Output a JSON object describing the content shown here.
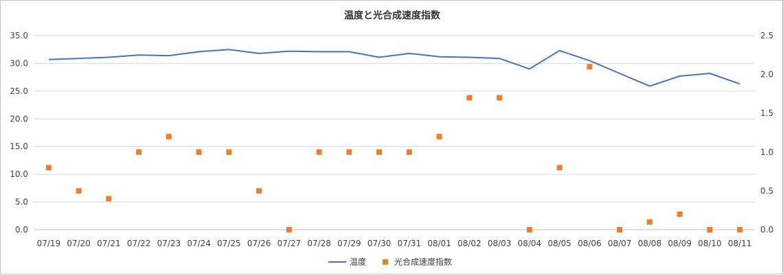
{
  "chart_data": {
    "type": "line+scatter",
    "title": "温度と光合成速度指数",
    "categories": [
      "07/19",
      "07/20",
      "07/21",
      "07/22",
      "07/23",
      "07/24",
      "07/25",
      "07/26",
      "07/27",
      "07/28",
      "07/29",
      "07/30",
      "07/31",
      "08/01",
      "08/02",
      "08/03",
      "08/04",
      "08/05",
      "08/06",
      "08/07",
      "08/08",
      "08/09",
      "08/10",
      "08/11"
    ],
    "y_left": {
      "min": 0,
      "max": 35,
      "step": 5,
      "ticks": [
        "0.0",
        "5.0",
        "10.0",
        "15.0",
        "20.0",
        "25.0",
        "30.0",
        "35.0"
      ]
    },
    "y_right": {
      "min": 0,
      "max": 2.5,
      "step": 0.5,
      "ticks": [
        "0.0",
        "0.5",
        "1.0",
        "1.5",
        "2.0",
        "2.5"
      ]
    },
    "grid": true,
    "legend_position": "bottom",
    "series": [
      {
        "name": "温度",
        "kind": "line",
        "axis": "left",
        "color": "#4472c4",
        "values": [
          30.7,
          30.9,
          31.1,
          31.5,
          31.4,
          32.1,
          32.5,
          31.8,
          32.2,
          32.1,
          32.1,
          31.1,
          31.8,
          31.2,
          31.1,
          30.9,
          29.0,
          32.3,
          30.5,
          28.2,
          25.9,
          27.7,
          28.2,
          26.3
        ]
      },
      {
        "name": "光合成速度指数",
        "kind": "scatter",
        "axis": "right",
        "color": "#ed7d31",
        "values": [
          0.8,
          0.5,
          0.4,
          1.0,
          1.2,
          1.0,
          1.0,
          0.5,
          0.0,
          1.0,
          1.0,
          1.0,
          1.0,
          1.2,
          1.7,
          1.7,
          0.0,
          0.8,
          2.1,
          0.0,
          0.1,
          0.2,
          0.0,
          0.0
        ]
      }
    ]
  }
}
